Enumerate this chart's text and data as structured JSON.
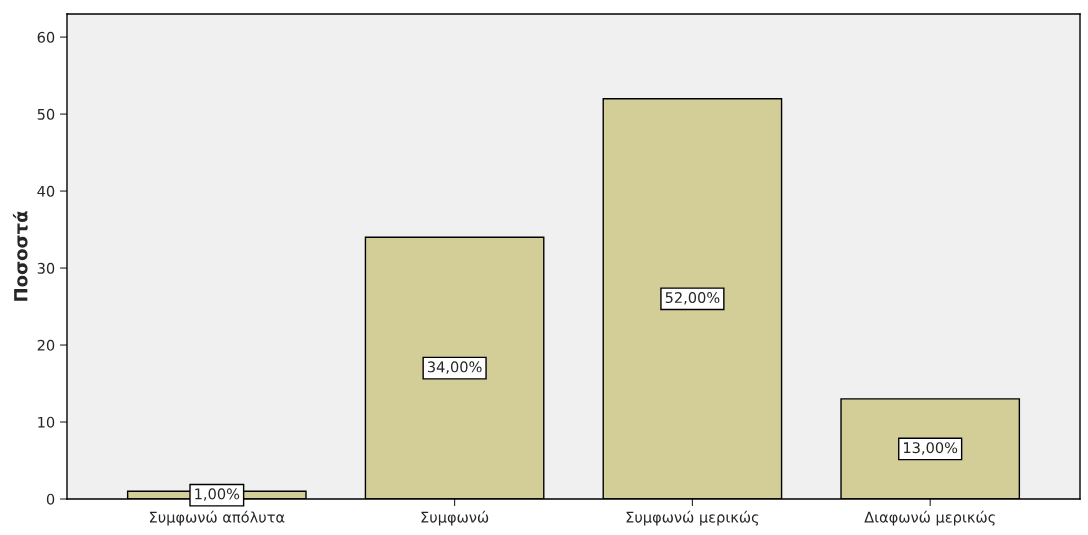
{
  "chart_data": {
    "type": "bar",
    "ylabel": "Ποσοστά",
    "categories": [
      "Συμφωνώ απόλυτα",
      "Συμφωνώ",
      "Συμφωνώ μερικώς",
      "Διαφωνώ μερικώς"
    ],
    "values": [
      1,
      34,
      52,
      13
    ],
    "value_labels": [
      "1,00%",
      "34,00%",
      "52,00%",
      "13,00%"
    ],
    "color": "#d3ce98",
    "ylim": [
      0,
      63
    ],
    "yticks": [
      0,
      10,
      20,
      30,
      40,
      50,
      60
    ],
    "grid": false,
    "legend": false
  }
}
